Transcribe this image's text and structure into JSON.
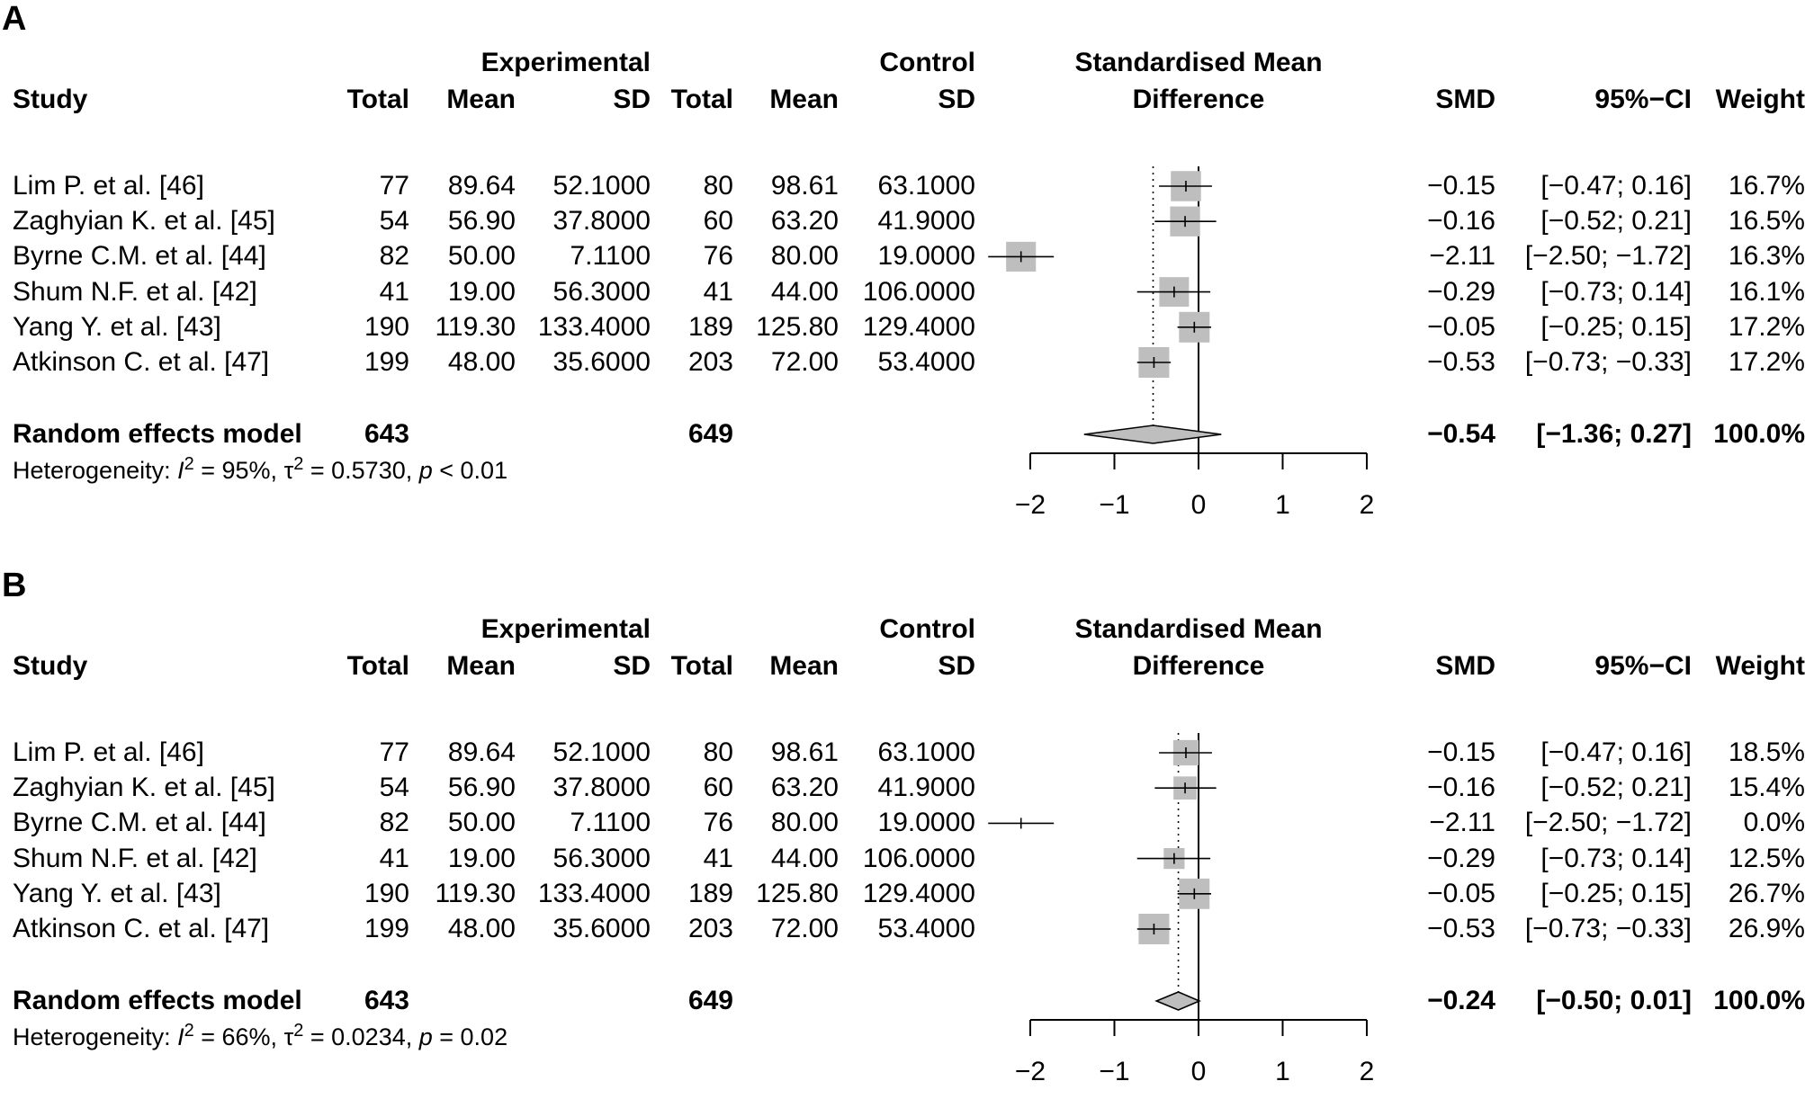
{
  "chart_data": [
    {
      "type": "forest",
      "panel_label": "A",
      "header": {
        "group1": "Experimental",
        "group2": "Control",
        "plot_title_line1": "Standardised Mean",
        "plot_title_line2": "Difference",
        "study": "Study",
        "total": "Total",
        "mean": "Mean",
        "sd": "SD",
        "smd": "SMD",
        "ci": "95%−CI",
        "weight": "Weight"
      },
      "studies": [
        {
          "name": "Lim P. et al. [46]",
          "e_total": "77",
          "e_mean": "89.64",
          "e_sd": "52.1000",
          "c_total": "80",
          "c_mean": "98.61",
          "c_sd": "63.1000",
          "smd_text": "−0.15",
          "ci_text": "[−0.47;  0.16]",
          "weight_text": "16.7%",
          "smd": -0.15,
          "lo": -0.47,
          "hi": 0.16,
          "weight": 16.7
        },
        {
          "name": "Zaghyian K. et al. [45]",
          "e_total": "54",
          "e_mean": "56.90",
          "e_sd": "37.8000",
          "c_total": "60",
          "c_mean": "63.20",
          "c_sd": "41.9000",
          "smd_text": "−0.16",
          "ci_text": "[−0.52;  0.21]",
          "weight_text": "16.5%",
          "smd": -0.16,
          "lo": -0.52,
          "hi": 0.21,
          "weight": 16.5
        },
        {
          "name": "Byrne C.M. et al. [44]",
          "e_total": "82",
          "e_mean": "50.00",
          "e_sd": "7.1100",
          "c_total": "76",
          "c_mean": "80.00",
          "c_sd": "19.0000",
          "smd_text": "−2.11",
          "ci_text": "[−2.50; −1.72]",
          "weight_text": "16.3%",
          "smd": -2.11,
          "lo": -2.5,
          "hi": -1.72,
          "weight": 16.3
        },
        {
          "name": "Shum N.F. et al. [42]",
          "e_total": "41",
          "e_mean": "19.00",
          "e_sd": "56.3000",
          "c_total": "41",
          "c_mean": "44.00",
          "c_sd": "106.0000",
          "smd_text": "−0.29",
          "ci_text": "[−0.73;  0.14]",
          "weight_text": "16.1%",
          "smd": -0.29,
          "lo": -0.73,
          "hi": 0.14,
          "weight": 16.1
        },
        {
          "name": "Yang Y. et al. [43]",
          "e_total": "190",
          "e_mean": "119.30",
          "e_sd": "133.4000",
          "c_total": "189",
          "c_mean": "125.80",
          "c_sd": "129.4000",
          "smd_text": "−0.05",
          "ci_text": "[−0.25;  0.15]",
          "weight_text": "17.2%",
          "smd": -0.05,
          "lo": -0.25,
          "hi": 0.15,
          "weight": 17.2
        },
        {
          "name": "Atkinson C. et al. [47]",
          "e_total": "199",
          "e_mean": "48.00",
          "e_sd": "35.6000",
          "c_total": "203",
          "c_mean": "72.00",
          "c_sd": "53.4000",
          "smd_text": "−0.53",
          "ci_text": "[−0.73; −0.33]",
          "weight_text": "17.2%",
          "smd": -0.53,
          "lo": -0.73,
          "hi": -0.33,
          "weight": 17.2
        }
      ],
      "summary": {
        "name": "Random effects model",
        "e_total": "643",
        "c_total": "649",
        "smd_text": "−0.54",
        "ci_text": "[−1.36;  0.27]",
        "weight_text": "100.0%",
        "smd": -0.54,
        "lo": -1.36,
        "hi": 0.27
      },
      "heterogeneity": {
        "prefix": "Heterogeneity: ",
        "I2_symbol": "I",
        "I2_value": " = 95%, ",
        "tau_symbol": "τ",
        "tau_value": " = 0.5730, ",
        "p_symbol": "p",
        "p_value": " < 0.01"
      },
      "xlim": [
        -2,
        2
      ],
      "xticks": [
        -2,
        -1,
        0,
        1,
        2
      ],
      "xtick_labels": [
        "−2",
        "−1",
        "0",
        "1",
        "2"
      ]
    },
    {
      "type": "forest",
      "panel_label": "B",
      "header": {
        "group1": "Experimental",
        "group2": "Control",
        "plot_title_line1": "Standardised Mean",
        "plot_title_line2": "Difference",
        "study": "Study",
        "total": "Total",
        "mean": "Mean",
        "sd": "SD",
        "smd": "SMD",
        "ci": "95%−CI",
        "weight": "Weight"
      },
      "studies": [
        {
          "name": "Lim P. et al. [46]",
          "e_total": "77",
          "e_mean": "89.64",
          "e_sd": "52.1000",
          "c_total": "80",
          "c_mean": "98.61",
          "c_sd": "63.1000",
          "smd_text": "−0.15",
          "ci_text": "[−0.47;  0.16]",
          "weight_text": "18.5%",
          "smd": -0.15,
          "lo": -0.47,
          "hi": 0.16,
          "weight": 18.5
        },
        {
          "name": "Zaghyian K. et al. [45]",
          "e_total": "54",
          "e_mean": "56.90",
          "e_sd": "37.8000",
          "c_total": "60",
          "c_mean": "63.20",
          "c_sd": "41.9000",
          "smd_text": "−0.16",
          "ci_text": "[−0.52;  0.21]",
          "weight_text": "15.4%",
          "smd": -0.16,
          "lo": -0.52,
          "hi": 0.21,
          "weight": 15.4
        },
        {
          "name": "Byrne C.M. et al. [44]",
          "e_total": "82",
          "e_mean": "50.00",
          "e_sd": "7.1100",
          "c_total": "76",
          "c_mean": "80.00",
          "c_sd": "19.0000",
          "smd_text": "−2.11",
          "ci_text": "[−2.50; −1.72]",
          "weight_text": "0.0%",
          "smd": -2.11,
          "lo": -2.5,
          "hi": -1.72,
          "weight": 0.0
        },
        {
          "name": "Shum N.F. et al. [42]",
          "e_total": "41",
          "e_mean": "19.00",
          "e_sd": "56.3000",
          "c_total": "41",
          "c_mean": "44.00",
          "c_sd": "106.0000",
          "smd_text": "−0.29",
          "ci_text": "[−0.73;  0.14]",
          "weight_text": "12.5%",
          "smd": -0.29,
          "lo": -0.73,
          "hi": 0.14,
          "weight": 12.5
        },
        {
          "name": "Yang Y. et al. [43]",
          "e_total": "190",
          "e_mean": "119.30",
          "e_sd": "133.4000",
          "c_total": "189",
          "c_mean": "125.80",
          "c_sd": "129.4000",
          "smd_text": "−0.05",
          "ci_text": "[−0.25;  0.15]",
          "weight_text": "26.7%",
          "smd": -0.05,
          "lo": -0.25,
          "hi": 0.15,
          "weight": 26.7
        },
        {
          "name": "Atkinson C. et al. [47]",
          "e_total": "199",
          "e_mean": "48.00",
          "e_sd": "35.6000",
          "c_total": "203",
          "c_mean": "72.00",
          "c_sd": "53.4000",
          "smd_text": "−0.53",
          "ci_text": "[−0.73; −0.33]",
          "weight_text": "26.9%",
          "smd": -0.53,
          "lo": -0.73,
          "hi": -0.33,
          "weight": 26.9
        }
      ],
      "summary": {
        "name": "Random effects model",
        "e_total": "643",
        "c_total": "649",
        "smd_text": "−0.24",
        "ci_text": "[−0.50;  0.01]",
        "weight_text": "100.0%",
        "smd": -0.24,
        "lo": -0.5,
        "hi": 0.01
      },
      "heterogeneity": {
        "prefix": "Heterogeneity: ",
        "I2_symbol": "I",
        "I2_value": " = 66%, ",
        "tau_symbol": "τ",
        "tau_value": " = 0.0234, ",
        "p_symbol": "p",
        "p_value": " = 0.02"
      },
      "xlim": [
        -2,
        2
      ],
      "xticks": [
        -2,
        -1,
        0,
        1,
        2
      ],
      "xtick_labels": [
        "−2",
        "−1",
        "0",
        "1",
        "2"
      ]
    }
  ],
  "colors": {
    "square": "#bebebe",
    "diamond": "#bebebe",
    "line": "#000000",
    "text": "#000000"
  }
}
